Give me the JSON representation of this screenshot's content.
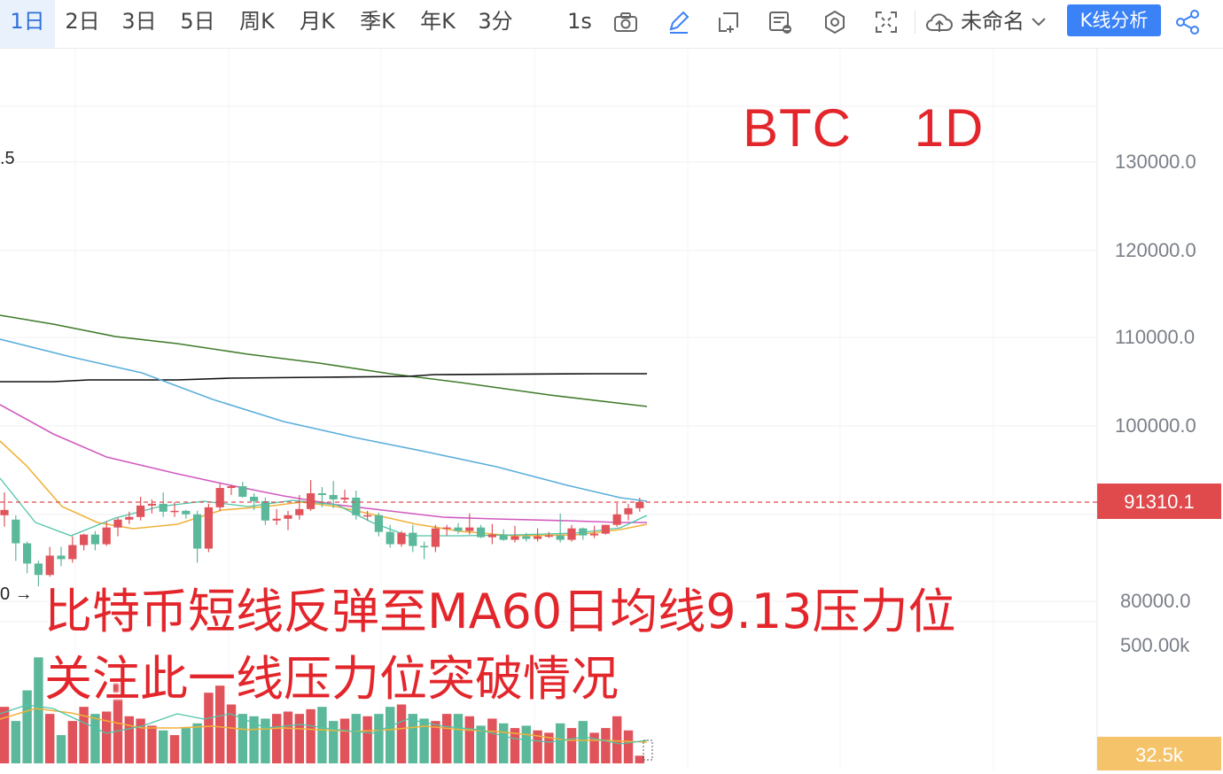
{
  "toolbar": {
    "timeframes": [
      "1日",
      "2日",
      "3日",
      "5日",
      "周K",
      "月K",
      "季K",
      "年K",
      "3分",
      "1s"
    ],
    "active_timeframe": "1日",
    "layout_name": "未命名",
    "analysis_button": "K线分析",
    "icons": [
      "camera-icon",
      "pencil-icon",
      "add-frame-icon",
      "indicator-toggle-icon",
      "settings-icon",
      "fullscreen-icon",
      "cloud-icon",
      "chevron-down-icon",
      "share-icon"
    ]
  },
  "chart": {
    "headline": "BTC    1D",
    "price_axis": [
      "130000.0",
      "120000.0",
      "110000.0",
      "100000.0",
      "80000.0"
    ],
    "volume_axis_label": "500.00k",
    "last_price": "91310.1",
    "last_volume": "32.5k",
    "left_edge_labels": [
      ".5",
      "0 →"
    ],
    "colors": {
      "up": "#e0535a",
      "down": "#5bb89a",
      "ma_black": "#111111",
      "ma_green": "#3f7a2a",
      "ma_blue": "#5aaedb",
      "ma_magenta": "#d25ac0",
      "ma_orange": "#f0b23a",
      "ma_teal": "#4fc4a8",
      "caption": "#e3262b",
      "analysis_button": "#3a82f6"
    }
  },
  "captions": {
    "line1": "比特币短线反弹至MA60日均线9.13压力位",
    "line2": "关注此一线压力位突破情况"
  }
}
